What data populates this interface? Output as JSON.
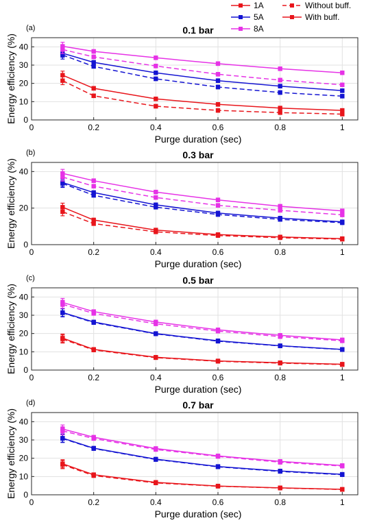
{
  "legend": {
    "position": "top-right, above first panel",
    "entries": [
      {
        "label": "1A",
        "color": "#e8151b",
        "style": "solid",
        "marker": "square"
      },
      {
        "label": "5A",
        "color": "#1414d2",
        "style": "solid",
        "marker": "square"
      },
      {
        "label": "8A",
        "color": "#e632e6",
        "style": "solid",
        "marker": "square"
      },
      {
        "label": "Without buff.",
        "color": "#e8151b",
        "style": "dashed",
        "marker": "square"
      },
      {
        "label": "With buff.",
        "color": "#e8151b",
        "style": "solid",
        "marker": "square"
      }
    ]
  },
  "chart_data": [
    {
      "type": "line",
      "panel_label": "(a)",
      "title": "0.1 bar",
      "xlabel": "Purge duration (sec)",
      "ylabel": "Energy efficiency (%)",
      "x": [
        0.1,
        0.2,
        0.4,
        0.6,
        0.8,
        1
      ],
      "xlim": [
        0,
        1.05
      ],
      "ylim": [
        0,
        45
      ],
      "xticks": [
        "0",
        "0.2",
        "0.4",
        "0.6",
        "0.8",
        "1"
      ],
      "yticks": [
        "0",
        "10",
        "20",
        "30",
        "40"
      ],
      "grid": true,
      "series": [
        {
          "name": "1A",
          "buffer": "With buff.",
          "dashed": false,
          "color": "#e8151b",
          "values": [
            24.5,
            17.3,
            11.5,
            8.5,
            6.5,
            5.2
          ],
          "errorbar": true
        },
        {
          "name": "1A",
          "buffer": "Without buff.",
          "dashed": true,
          "color": "#e8151b",
          "values": [
            21.5,
            13.2,
            7.5,
            5.2,
            4.0,
            3.2
          ],
          "errorbar": true
        },
        {
          "name": "5A",
          "buffer": "With buff.",
          "dashed": false,
          "color": "#1414d2",
          "values": [
            36.5,
            31.5,
            25.8,
            21.5,
            18.5,
            16.0
          ],
          "errorbar": true
        },
        {
          "name": "5A",
          "buffer": "Without buff.",
          "dashed": true,
          "color": "#1414d2",
          "values": [
            35.5,
            29.3,
            22.5,
            18.0,
            15.0,
            13.0
          ],
          "errorbar": true
        },
        {
          "name": "8A",
          "buffer": "With buff.",
          "dashed": false,
          "color": "#e632e6",
          "values": [
            40.3,
            37.5,
            34.0,
            30.8,
            28.0,
            25.8
          ],
          "errorbar": true
        },
        {
          "name": "8A",
          "buffer": "Without buff.",
          "dashed": true,
          "color": "#e632e6",
          "values": [
            38.5,
            34.5,
            29.5,
            25.0,
            21.8,
            19.2
          ],
          "errorbar": true
        }
      ]
    },
    {
      "type": "line",
      "panel_label": "(b)",
      "title": "0.3 bar",
      "xlabel": "Purge duration (sec)",
      "ylabel": "Energy efficiency (%)",
      "x": [
        0.1,
        0.2,
        0.4,
        0.6,
        0.8,
        1
      ],
      "xlim": [
        0,
        1.05
      ],
      "ylim": [
        0,
        45
      ],
      "xticks": [
        "0",
        "0.2",
        "0.4",
        "0.6",
        "0.8",
        "1"
      ],
      "yticks": [
        "0",
        "20",
        "40"
      ],
      "grid": true,
      "series": [
        {
          "name": "1A",
          "buffer": "With buff.",
          "dashed": false,
          "color": "#e8151b",
          "values": [
            20.5,
            13.5,
            8.0,
            5.5,
            4.2,
            3.3
          ],
          "errorbar": true
        },
        {
          "name": "1A",
          "buffer": "Without buff.",
          "dashed": true,
          "color": "#e8151b",
          "values": [
            18.0,
            11.5,
            7.0,
            5.0,
            3.8,
            3.0
          ],
          "errorbar": true
        },
        {
          "name": "5A",
          "buffer": "With buff.",
          "dashed": false,
          "color": "#1414d2",
          "values": [
            34.0,
            28.5,
            21.8,
            17.3,
            14.5,
            12.5
          ],
          "errorbar": true
        },
        {
          "name": "5A",
          "buffer": "Without buff.",
          "dashed": true,
          "color": "#1414d2",
          "values": [
            33.5,
            27.0,
            20.5,
            16.5,
            13.8,
            12.0
          ],
          "errorbar": true
        },
        {
          "name": "8A",
          "buffer": "With buff.",
          "dashed": false,
          "color": "#e632e6",
          "values": [
            39.0,
            35.0,
            28.8,
            24.5,
            21.0,
            18.5
          ],
          "errorbar": true
        },
        {
          "name": "8A",
          "buffer": "Without buff.",
          "dashed": true,
          "color": "#e632e6",
          "values": [
            37.0,
            32.0,
            25.8,
            21.5,
            18.8,
            16.3
          ],
          "errorbar": true
        }
      ]
    },
    {
      "type": "line",
      "panel_label": "(c)",
      "title": "0.5 bar",
      "xlabel": "Purge duration (sec)",
      "ylabel": "Energy efficiency (%)",
      "x": [
        0.1,
        0.2,
        0.4,
        0.6,
        0.8,
        1
      ],
      "xlim": [
        0,
        1.05
      ],
      "ylim": [
        0,
        45
      ],
      "xticks": [
        "0",
        "0.2",
        "0.4",
        "0.6",
        "0.8",
        "1"
      ],
      "yticks": [
        "0",
        "10",
        "20",
        "30",
        "40"
      ],
      "grid": true,
      "series": [
        {
          "name": "1A",
          "buffer": "With buff.",
          "dashed": false,
          "color": "#e8151b",
          "values": [
            17.5,
            11.3,
            7.0,
            5.0,
            4.0,
            3.2
          ],
          "errorbar": true
        },
        {
          "name": "1A",
          "buffer": "Without buff.",
          "dashed": true,
          "color": "#e8151b",
          "values": [
            17.0,
            11.0,
            6.8,
            4.8,
            3.8,
            3.0
          ],
          "errorbar": true
        },
        {
          "name": "5A",
          "buffer": "With buff.",
          "dashed": false,
          "color": "#1414d2",
          "values": [
            31.5,
            26.3,
            20.0,
            16.0,
            13.3,
            11.3
          ],
          "errorbar": true
        },
        {
          "name": "5A",
          "buffer": "Without buff.",
          "dashed": true,
          "color": "#1414d2",
          "values": [
            31.3,
            26.0,
            19.8,
            15.8,
            13.2,
            11.2
          ],
          "errorbar": true
        },
        {
          "name": "8A",
          "buffer": "With buff.",
          "dashed": false,
          "color": "#e632e6",
          "values": [
            37.0,
            32.0,
            26.3,
            22.0,
            19.0,
            16.5
          ],
          "errorbar": true
        },
        {
          "name": "8A",
          "buffer": "Without buff.",
          "dashed": true,
          "color": "#e632e6",
          "values": [
            36.0,
            31.0,
            25.3,
            21.3,
            18.3,
            16.0
          ],
          "errorbar": true
        }
      ]
    },
    {
      "type": "line",
      "panel_label": "(d)",
      "title": "0.7 bar",
      "xlabel": "Purge duration (sec)",
      "ylabel": "Energy efficiency (%)",
      "x": [
        0.1,
        0.2,
        0.4,
        0.6,
        0.8,
        1
      ],
      "xlim": [
        0,
        1.05
      ],
      "ylim": [
        0,
        45
      ],
      "xticks": [
        "0",
        "0.2",
        "0.4",
        "0.6",
        "0.8",
        "1"
      ],
      "yticks": [
        "0",
        "10",
        "20",
        "30",
        "40"
      ],
      "grid": true,
      "series": [
        {
          "name": "1A",
          "buffer": "With buff.",
          "dashed": false,
          "color": "#e8151b",
          "values": [
            17.0,
            11.0,
            6.8,
            4.8,
            3.8,
            3.0
          ],
          "errorbar": true
        },
        {
          "name": "1A",
          "buffer": "Without buff.",
          "dashed": true,
          "color": "#e8151b",
          "values": [
            16.5,
            10.5,
            6.5,
            4.7,
            3.7,
            2.9
          ],
          "errorbar": true
        },
        {
          "name": "5A",
          "buffer": "With buff.",
          "dashed": false,
          "color": "#1414d2",
          "values": [
            31.0,
            25.5,
            19.5,
            15.5,
            13.0,
            11.2
          ],
          "errorbar": true
        },
        {
          "name": "5A",
          "buffer": "Without buff.",
          "dashed": true,
          "color": "#1414d2",
          "values": [
            30.8,
            25.3,
            19.3,
            15.3,
            12.8,
            11.0
          ],
          "errorbar": true
        },
        {
          "name": "8A",
          "buffer": "With buff.",
          "dashed": false,
          "color": "#e632e6",
          "values": [
            36.0,
            31.5,
            25.3,
            21.3,
            18.3,
            16.0
          ],
          "errorbar": true
        },
        {
          "name": "8A",
          "buffer": "Without buff.",
          "dashed": true,
          "color": "#e632e6",
          "values": [
            35.0,
            30.8,
            24.8,
            21.0,
            17.8,
            15.7
          ],
          "errorbar": true
        }
      ]
    }
  ]
}
